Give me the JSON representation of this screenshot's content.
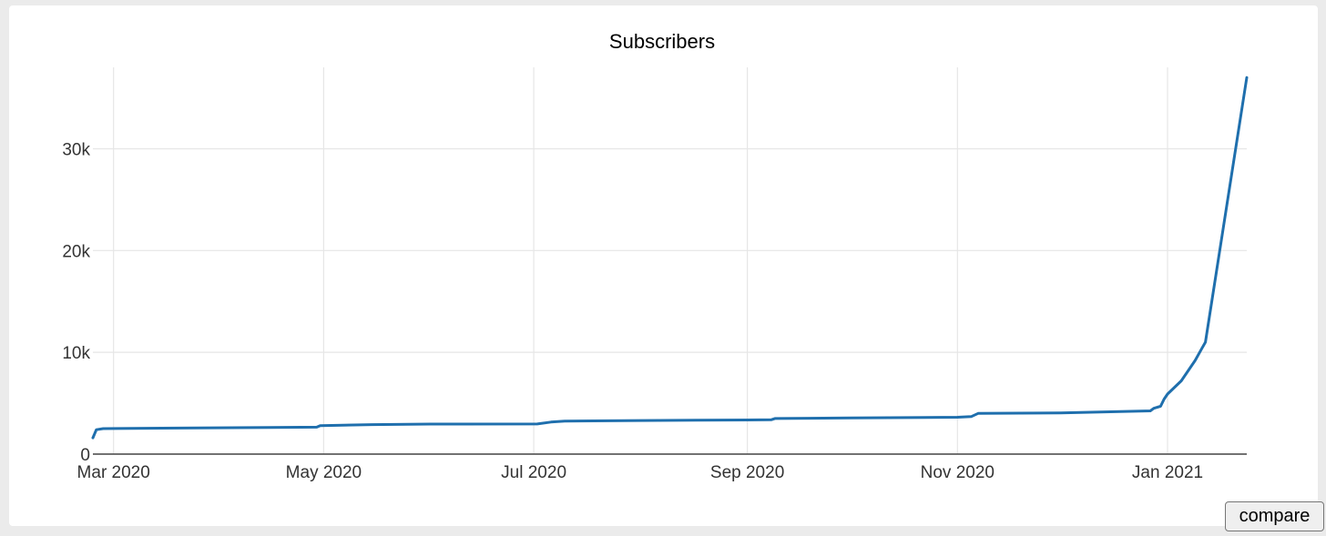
{
  "chart_data": {
    "type": "line",
    "title": "Subscribers",
    "xlabel": "",
    "ylabel": "",
    "x_tick_labels": [
      "Mar 2020",
      "May 2020",
      "Jul 2020",
      "Sep 2020",
      "Nov 2020",
      "Jan 2021"
    ],
    "x_tick_dates": [
      "2020-03-01",
      "2020-05-01",
      "2020-07-01",
      "2020-09-01",
      "2020-11-01",
      "2021-01-01"
    ],
    "y_tick_labels": [
      "0",
      "10k",
      "20k",
      "30k"
    ],
    "y_tick_values": [
      0,
      10000,
      20000,
      30000
    ],
    "xlim": [
      "2020-02-24",
      "2021-01-24"
    ],
    "ylim": [
      0,
      38000
    ],
    "grid": true,
    "legend": "none",
    "series": [
      {
        "color": "#1f6fad",
        "x": [
          "2020-02-24",
          "2020-02-25",
          "2020-02-27",
          "2020-03-15",
          "2020-04-15",
          "2020-04-29",
          "2020-04-30",
          "2020-05-15",
          "2020-06-01",
          "2020-07-02",
          "2020-07-06",
          "2020-07-10",
          "2020-08-01",
          "2020-09-01",
          "2020-09-08",
          "2020-09-09",
          "2020-10-01",
          "2020-11-01",
          "2020-11-05",
          "2020-11-07",
          "2020-12-01",
          "2020-12-27",
          "2020-12-28",
          "2020-12-30",
          "2020-12-31",
          "2021-01-01",
          "2021-01-05",
          "2021-01-09",
          "2021-01-11",
          "2021-01-12",
          "2021-01-24"
        ],
        "y": [
          1600,
          2400,
          2500,
          2550,
          2620,
          2650,
          2800,
          2900,
          2950,
          2960,
          3150,
          3250,
          3300,
          3350,
          3380,
          3500,
          3550,
          3620,
          3680,
          4000,
          4050,
          4250,
          4500,
          4700,
          5400,
          5900,
          7200,
          9200,
          10400,
          11000,
          37000
        ]
      }
    ]
  },
  "compare_button": {
    "label": "compare"
  }
}
